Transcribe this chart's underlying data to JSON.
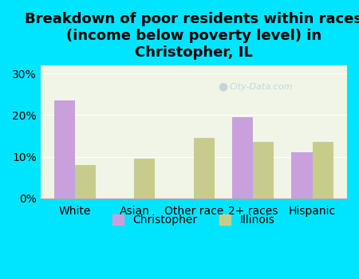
{
  "title": "Breakdown of poor residents within races\n(income below poverty level) in\nChristopher, IL",
  "categories": [
    "White",
    "Asian",
    "Other race",
    "2+ races",
    "Hispanic"
  ],
  "christopher_values": [
    23.5,
    0,
    0,
    19.5,
    11.0
  ],
  "illinois_values": [
    8.0,
    9.5,
    14.5,
    13.5,
    13.5
  ],
  "christopher_color": "#c9a0dc",
  "illinois_color": "#c8cc8a",
  "background_outer": "#00e5ff",
  "background_inner": "#f0f5e8",
  "ylim": [
    0,
    32
  ],
  "yticks": [
    0,
    10,
    20,
    30
  ],
  "ytick_labels": [
    "0%",
    "10%",
    "20%",
    "30%"
  ],
  "bar_width": 0.35,
  "title_fontsize": 13,
  "tick_fontsize": 10,
  "legend_fontsize": 10,
  "watermark": "City-Data.com"
}
